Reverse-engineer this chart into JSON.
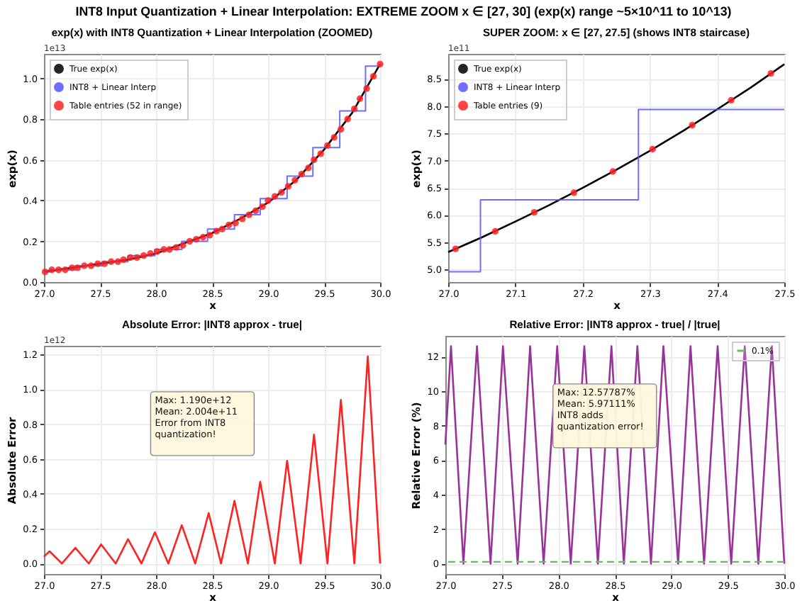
{
  "chart_data": [
    {
      "type": "other",
      "title": "INT8 Input Quantization + Linear Interpolation: EXTREME ZOOM x ∈ [27, 30] (exp(x) range ~5×10^11 to 10^13)"
    },
    {
      "type": "line",
      "title": "exp(x) with INT8 Quantization + Linear Interpolation (ZOOMED)",
      "xlabel": "x",
      "ylabel": "exp(x)",
      "annotations": [
        "1e13"
      ],
      "xlim": [
        27,
        30
      ],
      "ylim": [
        0,
        1.12
      ],
      "xticks": [
        {
          "value": 27,
          "label": "27.0"
        },
        27.5,
        {
          "value": 28,
          "label": "28.0"
        },
        28.5,
        {
          "value": 29,
          "label": "29.0"
        },
        29.5,
        {
          "value": 30,
          "label": "30.0"
        }
      ],
      "yticks": [
        {
          "value": 0,
          "label": "0.0"
        },
        0.2,
        0.4,
        0.6,
        0.8,
        {
          "value": 1,
          "label": "1.0"
        }
      ],
      "grid": true,
      "legend": "top left",
      "series": [
        {
          "name": "True exp(x)",
          "type": "line",
          "color": "#000000",
          "x": [
            27,
            27.25,
            27.5,
            27.75,
            28,
            28.25,
            28.5,
            28.75,
            29,
            29.25,
            29.5,
            29.75,
            30
          ],
          "values": [
            0.05,
            0.07,
            0.09,
            0.11,
            0.14,
            0.19,
            0.24,
            0.31,
            0.39,
            0.5,
            0.65,
            0.83,
            1.07
          ]
        },
        {
          "name": "INT8 + Linear Interp",
          "type": "step",
          "color": "#5555ff",
          "x": [
            27,
            27.05,
            27.28,
            27.52,
            27.75,
            27.99,
            28.23,
            28.46,
            28.7,
            28.93,
            29.17,
            29.4,
            29.64,
            29.87,
            30
          ],
          "values": [
            0.05,
            0.06,
            0.08,
            0.1,
            0.13,
            0.16,
            0.2,
            0.26,
            0.33,
            0.41,
            0.52,
            0.66,
            0.84,
            1.06,
            1.06
          ]
        },
        {
          "name": "Table entries (52 in range)",
          "type": "scatter",
          "color": "#ff2222",
          "x": [
            27.01,
            27.07,
            27.13,
            27.19,
            27.25,
            27.3,
            27.36,
            27.42,
            27.48,
            27.54,
            27.6,
            27.66,
            27.71,
            27.77,
            27.83,
            27.89,
            27.95,
            28.01,
            28.07,
            28.12,
            28.18,
            28.24,
            28.3,
            28.36,
            28.42,
            28.48,
            28.54,
            28.59,
            28.65,
            28.71,
            28.77,
            28.83,
            28.89,
            28.95,
            29,
            29.06,
            29.12,
            29.18,
            29.24,
            29.3,
            29.36,
            29.41,
            29.47,
            29.53,
            29.59,
            29.65,
            29.71,
            29.77,
            29.82,
            29.88,
            29.94,
            30
          ],
          "values": [
            0.05,
            0.06,
            0.06,
            0.06,
            0.07,
            0.07,
            0.08,
            0.08,
            0.09,
            0.09,
            0.1,
            0.1,
            0.11,
            0.12,
            0.12,
            0.13,
            0.14,
            0.15,
            0.16,
            0.16,
            0.17,
            0.18,
            0.2,
            0.21,
            0.22,
            0.23,
            0.25,
            0.26,
            0.28,
            0.29,
            0.31,
            0.33,
            0.35,
            0.37,
            0.4,
            0.42,
            0.44,
            0.47,
            0.5,
            0.53,
            0.56,
            0.6,
            0.63,
            0.67,
            0.71,
            0.75,
            0.8,
            0.85,
            0.9,
            0.95,
            1.01,
            1.07
          ]
        }
      ]
    },
    {
      "type": "line",
      "title": "SUPER ZOOM: x ∈ [27, 27.5] (shows INT8 staircase)",
      "xlabel": "x",
      "ylabel": "exp(x)",
      "annotations": [
        "1e11"
      ],
      "xlim": [
        27,
        27.5
      ],
      "ylim": [
        4.77,
        8.96
      ],
      "xticks": [
        {
          "value": 27,
          "label": "27.0"
        },
        27.1,
        27.2,
        27.3,
        27.4,
        27.5
      ],
      "yticks": [
        {
          "value": 5,
          "label": "5.0"
        },
        5.5,
        {
          "value": 6,
          "label": "6.0"
        },
        6.5,
        {
          "value": 7,
          "label": "7.0"
        },
        7.5,
        {
          "value": 8,
          "label": "8.0"
        },
        8.5
      ],
      "grid": true,
      "legend": "top left",
      "series": [
        {
          "name": "True exp(x)",
          "type": "line",
          "color": "#000000",
          "x": [
            27,
            27.05,
            27.1,
            27.15,
            27.2,
            27.25,
            27.3,
            27.35,
            27.4,
            27.45,
            27.5
          ],
          "values": [
            5.32,
            5.59,
            5.88,
            6.18,
            6.5,
            6.83,
            7.18,
            7.55,
            7.94,
            8.34,
            8.77
          ]
        },
        {
          "name": "INT8 + Linear Interp",
          "type": "step",
          "color": "#5555ff",
          "x": [
            27,
            27.048,
            27.283,
            27.5
          ],
          "values": [
            4.96,
            6.28,
            7.94,
            7.94
          ]
        },
        {
          "name": "Table entries (9)",
          "type": "scatter",
          "color": "#ff2222",
          "x": [
            27.011,
            27.07,
            27.128,
            27.187,
            27.245,
            27.304,
            27.363,
            27.421,
            27.48
          ],
          "values": [
            5.38,
            5.7,
            6.05,
            6.41,
            6.8,
            7.21,
            7.65,
            8.11,
            8.6
          ]
        }
      ]
    },
    {
      "type": "line",
      "title": "Absolute Error: |INT8 approx - true|",
      "xlabel": "x",
      "ylabel": "Absolute Error",
      "annotations": [
        "1e12",
        "Max: 1.190e+12\nMean: 2.004e+11\n\nError from INT8\nquantization!"
      ],
      "xlim": [
        27,
        30
      ],
      "ylim": [
        -0.06,
        1.25
      ],
      "xticks": [
        {
          "value": 27,
          "label": "27.0"
        },
        27.5,
        {
          "value": 28,
          "label": "28.0"
        },
        28.5,
        {
          "value": 29,
          "label": "29.0"
        },
        29.5,
        {
          "value": 30,
          "label": "30.0"
        }
      ],
      "yticks": [
        {
          "value": 0,
          "label": "0.0"
        },
        0.2,
        0.4,
        0.6,
        0.8,
        {
          "value": 1,
          "label": "1.0"
        },
        1.2
      ],
      "grid": true,
      "x": [
        27,
        27.05,
        27.16,
        27.28,
        27.4,
        27.51,
        27.64,
        27.75,
        27.87,
        27.99,
        28.11,
        28.23,
        28.35,
        28.47,
        28.58,
        28.7,
        28.82,
        28.93,
        29.06,
        29.17,
        29.29,
        29.41,
        29.53,
        29.65,
        29.77,
        29.89,
        30
      ],
      "series": [
        {
          "color": "#ff2222",
          "values": [
            0.04,
            0.07,
            0,
            0.09,
            0,
            0.11,
            0,
            0.14,
            0,
            0.18,
            0,
            0.22,
            0,
            0.29,
            0,
            0.36,
            0,
            0.47,
            0,
            0.59,
            0,
            0.74,
            0,
            0.94,
            0,
            1.19,
            0
          ]
        }
      ]
    },
    {
      "type": "line",
      "title": "Relative Error: |INT8 approx - true| / |true|",
      "xlabel": "x",
      "ylabel": "Relative Error (%)",
      "annotations": [
        "Max: 12.57787%\nMean: 5.97111%\n\nINT8 adds\nquantization error!"
      ],
      "xlim": [
        27,
        30
      ],
      "ylim": [
        -0.6,
        13.2
      ],
      "xticks": [
        {
          "value": 27,
          "label": "27.0"
        },
        27.5,
        {
          "value": 28,
          "label": "28.0"
        },
        28.5,
        {
          "value": 29,
          "label": "29.0"
        },
        29.5,
        {
          "value": 30,
          "label": "30.0"
        }
      ],
      "yticks": [
        0,
        2,
        4,
        6,
        8,
        10,
        12
      ],
      "grid": true,
      "legend": "top right",
      "x": [
        27,
        27.05,
        27.16,
        27.28,
        27.4,
        27.51,
        27.64,
        27.75,
        27.87,
        27.99,
        28.11,
        28.23,
        28.35,
        28.47,
        28.58,
        28.7,
        28.82,
        28.93,
        29.06,
        29.17,
        29.29,
        29.41,
        29.53,
        29.65,
        29.77,
        29.89,
        30
      ],
      "series": [
        {
          "color": "#993399",
          "values": [
            6.9,
            12.6,
            0,
            12.6,
            0,
            12.6,
            0,
            12.6,
            0,
            12.6,
            0,
            12.6,
            0,
            12.6,
            0,
            12.6,
            0,
            12.6,
            0,
            12.6,
            0,
            12.6,
            0,
            12.6,
            0,
            12.6,
            0
          ]
        }
      ],
      "ref_lines": [
        {
          "axis": "y",
          "value": 0.1,
          "label": "0.1%",
          "color": "#66bb66",
          "line_style": "dashed"
        }
      ]
    }
  ]
}
